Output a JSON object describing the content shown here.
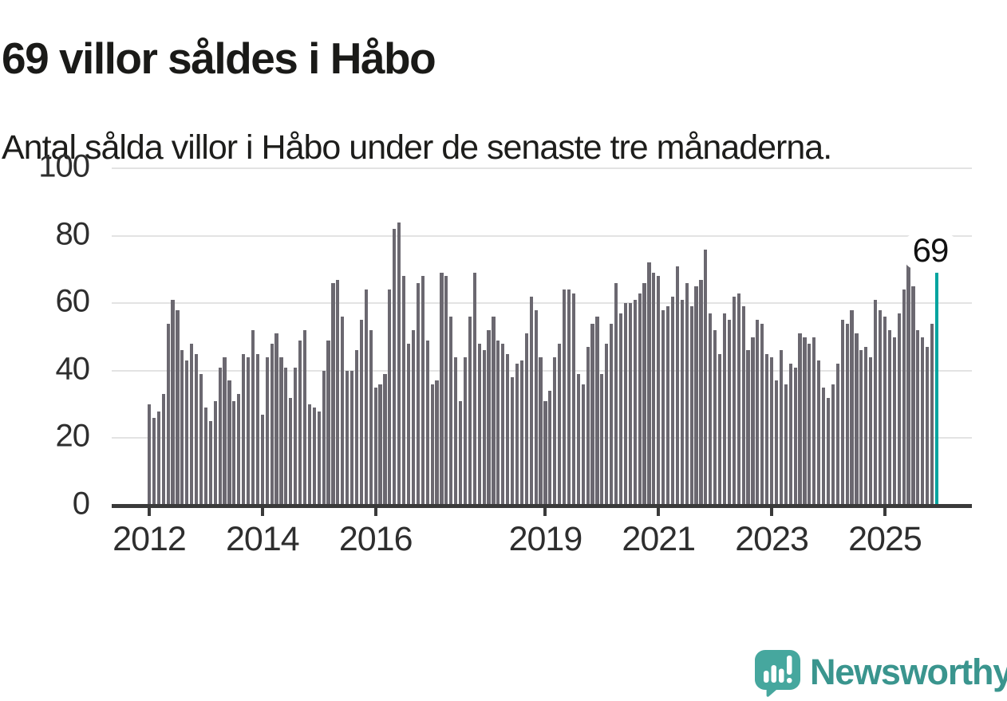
{
  "chart_data": {
    "type": "bar",
    "title": "69 villor såldes i Håbo",
    "subtitle": "Antal sålda villor i Håbo under de senaste tre månaderna.",
    "start_year": 2012,
    "values": [
      30,
      26,
      28,
      33,
      54,
      61,
      58,
      46,
      43,
      48,
      45,
      39,
      29,
      25,
      31,
      41,
      44,
      37,
      31,
      33,
      45,
      44,
      52,
      45,
      27,
      44,
      48,
      51,
      44,
      41,
      32,
      41,
      49,
      52,
      30,
      29,
      28,
      40,
      49,
      66,
      67,
      56,
      40,
      40,
      46,
      55,
      64,
      52,
      35,
      36,
      39,
      64,
      82,
      84,
      68,
      48,
      52,
      66,
      68,
      49,
      36,
      37,
      69,
      68,
      56,
      44,
      31,
      44,
      56,
      69,
      48,
      46,
      52,
      56,
      49,
      48,
      45,
      38,
      42,
      43,
      51,
      62,
      58,
      44,
      31,
      34,
      44,
      48,
      64,
      64,
      63,
      39,
      36,
      47,
      54,
      56,
      39,
      48,
      54,
      66,
      57,
      60,
      60,
      61,
      63,
      66,
      72,
      69,
      68,
      58,
      59,
      62,
      71,
      61,
      66,
      59,
      65,
      67,
      76,
      57,
      52,
      45,
      57,
      55,
      62,
      63,
      59,
      46,
      50,
      55,
      54,
      45,
      44,
      37,
      46,
      36,
      42,
      41,
      51,
      50,
      48,
      50,
      43,
      35,
      32,
      36,
      42,
      55,
      54,
      58,
      51,
      46,
      47,
      44,
      61,
      58,
      56,
      52,
      50,
      57,
      64,
      72,
      65,
      52,
      50,
      47,
      54,
      69
    ],
    "highlight": {
      "index": 167,
      "value": 69,
      "label": "69"
    },
    "x_ticks": [
      {
        "label": "2012",
        "month": 0
      },
      {
        "label": "2014",
        "month": 24
      },
      {
        "label": "2016",
        "month": 48
      },
      {
        "label": "2019",
        "month": 84
      },
      {
        "label": "2021",
        "month": 108
      },
      {
        "label": "2023",
        "month": 132
      },
      {
        "label": "2025",
        "month": 156
      }
    ],
    "y_ticks": [
      0,
      20,
      40,
      60,
      80,
      100
    ],
    "ylim": [
      0,
      100
    ],
    "grid": true,
    "legend": "none",
    "colors": {
      "bar": "#6b6870",
      "highlight": "#00a49f",
      "grid": "#e3e3e3",
      "axis": "#3a3a3a",
      "brand": "#3a958e",
      "logo_bubble": "#46a79e"
    }
  },
  "footer": {
    "brand": "Newsworthy",
    "logo_icon": "newsworthy-speech-bubble-bar-chart-icon"
  }
}
